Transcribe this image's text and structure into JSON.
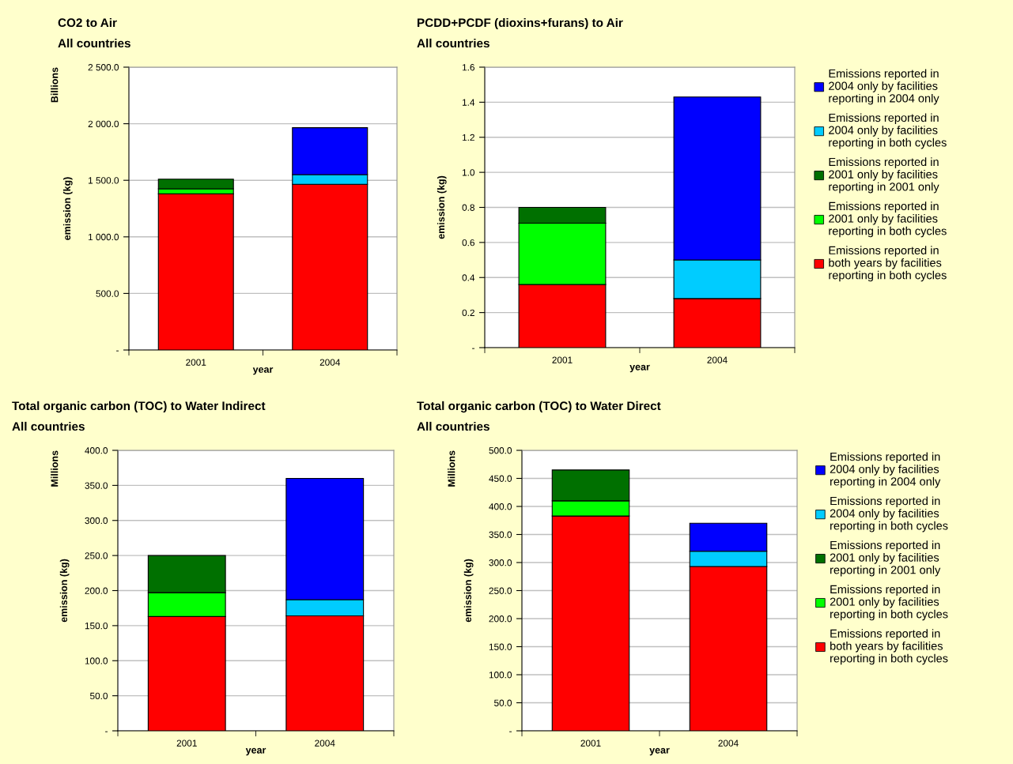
{
  "chart_data": [
    {
      "type": "bar",
      "stacked": true,
      "title": "CO2 to Air",
      "subtitle": "All countries",
      "xlabel": "year",
      "ylabel": "emission (kg)",
      "annotations": [
        "Billions"
      ],
      "categories": [
        "2001",
        "2004"
      ],
      "ylim": [
        0,
        2500
      ],
      "yticks": [
        {
          "value": 0,
          "label": "-"
        },
        {
          "value": 500,
          "label": "500.0"
        },
        {
          "value": 1000,
          "label": "1 000.0"
        },
        {
          "value": 1500,
          "label": "1 500.0"
        },
        {
          "value": 2000,
          "label": "2 000.0"
        },
        {
          "value": 2500,
          "label": "2 500.0"
        }
      ],
      "grid": "y",
      "legend": false,
      "series": [
        {
          "color": "#ff0000",
          "values": [
            1380,
            1465
          ]
        },
        {
          "color": "#00ff00",
          "values": [
            45,
            null
          ]
        },
        {
          "color": "#007000",
          "values": [
            85,
            null
          ]
        },
        {
          "color": "#00ccff",
          "values": [
            null,
            85
          ]
        },
        {
          "color": "#0000ff",
          "values": [
            null,
            415
          ]
        }
      ]
    },
    {
      "type": "bar",
      "stacked": true,
      "title": "PCDD+PCDF (dioxins+furans) to Air",
      "subtitle": "All countries",
      "xlabel": "year",
      "ylabel": "emission (kg)",
      "categories": [
        "2001",
        "2004"
      ],
      "ylim": [
        0,
        1.6
      ],
      "yticks": [
        {
          "value": 0,
          "label": "-"
        },
        0.2,
        0.4,
        0.6,
        0.8,
        {
          "value": 1.0,
          "label": "1.0"
        },
        1.2,
        1.4,
        1.6
      ],
      "grid": "y",
      "legend": "right",
      "series": [
        {
          "name": "Emissions reported in\nboth years by facilities\nreporting in both cycles",
          "color": "#ff0000",
          "values": [
            0.36,
            0.28
          ]
        },
        {
          "name": "Emissions reported in\n2001 only by facilities\nreporting in both cycles",
          "color": "#00ff00",
          "values": [
            0.35,
            null
          ]
        },
        {
          "name": "Emissions reported in\n2001 only by facilities\nreporting in 2001 only",
          "color": "#007000",
          "values": [
            0.09,
            null
          ]
        },
        {
          "name": "Emissions reported in\n2004 only by facilities\nreporting in both cycles",
          "color": "#00ccff",
          "values": [
            null,
            0.22
          ]
        },
        {
          "name": "Emissions reported in\n2004 only by facilities\nreporting in 2004 only",
          "color": "#0000ff",
          "values": [
            null,
            0.93
          ]
        }
      ]
    },
    {
      "type": "bar",
      "stacked": true,
      "title": "Total organic carbon (TOC) to Water Indirect",
      "subtitle": "All countries",
      "xlabel": "year",
      "ylabel": "emission (kg)",
      "annotations": [
        "Millions"
      ],
      "categories": [
        "2001",
        "2004"
      ],
      "ylim": [
        0,
        400
      ],
      "yticks": [
        {
          "value": 0,
          "label": "-"
        },
        {
          "value": 50,
          "label": "50.0"
        },
        {
          "value": 100,
          "label": "100.0"
        },
        {
          "value": 150,
          "label": "150.0"
        },
        {
          "value": 200,
          "label": "200.0"
        },
        {
          "value": 250,
          "label": "250.0"
        },
        {
          "value": 300,
          "label": "300.0"
        },
        {
          "value": 350,
          "label": "350.0"
        },
        {
          "value": 400,
          "label": "400.0"
        }
      ],
      "grid": "y",
      "legend": false,
      "series": [
        {
          "color": "#ff0000",
          "values": [
            163,
            164
          ]
        },
        {
          "color": "#00ff00",
          "values": [
            34,
            null
          ]
        },
        {
          "color": "#007000",
          "values": [
            53,
            null
          ]
        },
        {
          "color": "#00ccff",
          "values": [
            null,
            23
          ]
        },
        {
          "color": "#0000ff",
          "values": [
            null,
            173
          ]
        }
      ]
    },
    {
      "type": "bar",
      "stacked": true,
      "title": "Total organic carbon (TOC) to Water Direct",
      "subtitle": "All countries",
      "xlabel": "year",
      "ylabel": "emission (kg)",
      "annotations": [
        "Millions"
      ],
      "categories": [
        "2001",
        "2004"
      ],
      "ylim": [
        0,
        500
      ],
      "yticks": [
        {
          "value": 0,
          "label": "-"
        },
        {
          "value": 50,
          "label": "50.0"
        },
        {
          "value": 100,
          "label": "100.0"
        },
        {
          "value": 150,
          "label": "150.0"
        },
        {
          "value": 200,
          "label": "200.0"
        },
        {
          "value": 250,
          "label": "250.0"
        },
        {
          "value": 300,
          "label": "300.0"
        },
        {
          "value": 350,
          "label": "350.0"
        },
        {
          "value": 400,
          "label": "400.0"
        },
        {
          "value": 450,
          "label": "450.0"
        },
        {
          "value": 500,
          "label": "500.0"
        }
      ],
      "grid": "y",
      "legend": "right",
      "series": [
        {
          "name": "Emissions reported in\nboth years by facilities\nreporting in both cycles",
          "color": "#ff0000",
          "values": [
            383,
            293
          ]
        },
        {
          "name": "Emissions reported in\n2001 only by facilities\nreporting in both cycles",
          "color": "#00ff00",
          "values": [
            27,
            null
          ]
        },
        {
          "name": "Emissions reported in\n2001 only by facilities\nreporting in 2001 only",
          "color": "#007000",
          "values": [
            55,
            null
          ]
        },
        {
          "name": "Emissions reported in\n2004 only by facilities\nreporting in both cycles",
          "color": "#00ccff",
          "values": [
            null,
            27
          ]
        },
        {
          "name": "Emissions reported in\n2004 only by facilities\nreporting in 2004 only",
          "color": "#0000ff",
          "values": [
            null,
            50
          ]
        }
      ]
    }
  ]
}
